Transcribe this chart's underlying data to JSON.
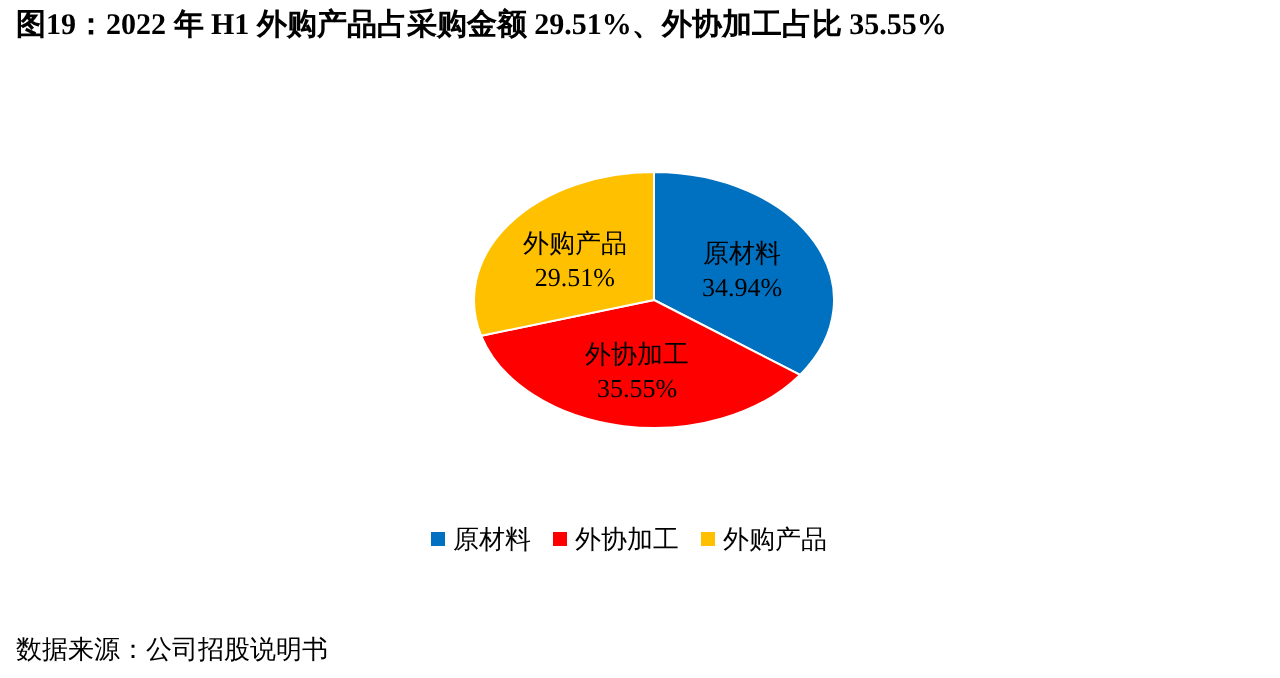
{
  "chart_data": {
    "type": "pie",
    "title": "图19：2022 年 H1 外购产品占采购金额 29.51%、外协加工占比 35.55%",
    "categories": [
      "原材料",
      "外协加工",
      "外购产品"
    ],
    "values": [
      34.94,
      35.55,
      29.51
    ],
    "colors": [
      "#0070c0",
      "#ff0000",
      "#ffc000"
    ],
    "value_labels": [
      "34.94%",
      "35.55%",
      "29.51%"
    ],
    "legend": "bottom",
    "annotations": [
      "数据来源：公司招股说明书"
    ]
  }
}
